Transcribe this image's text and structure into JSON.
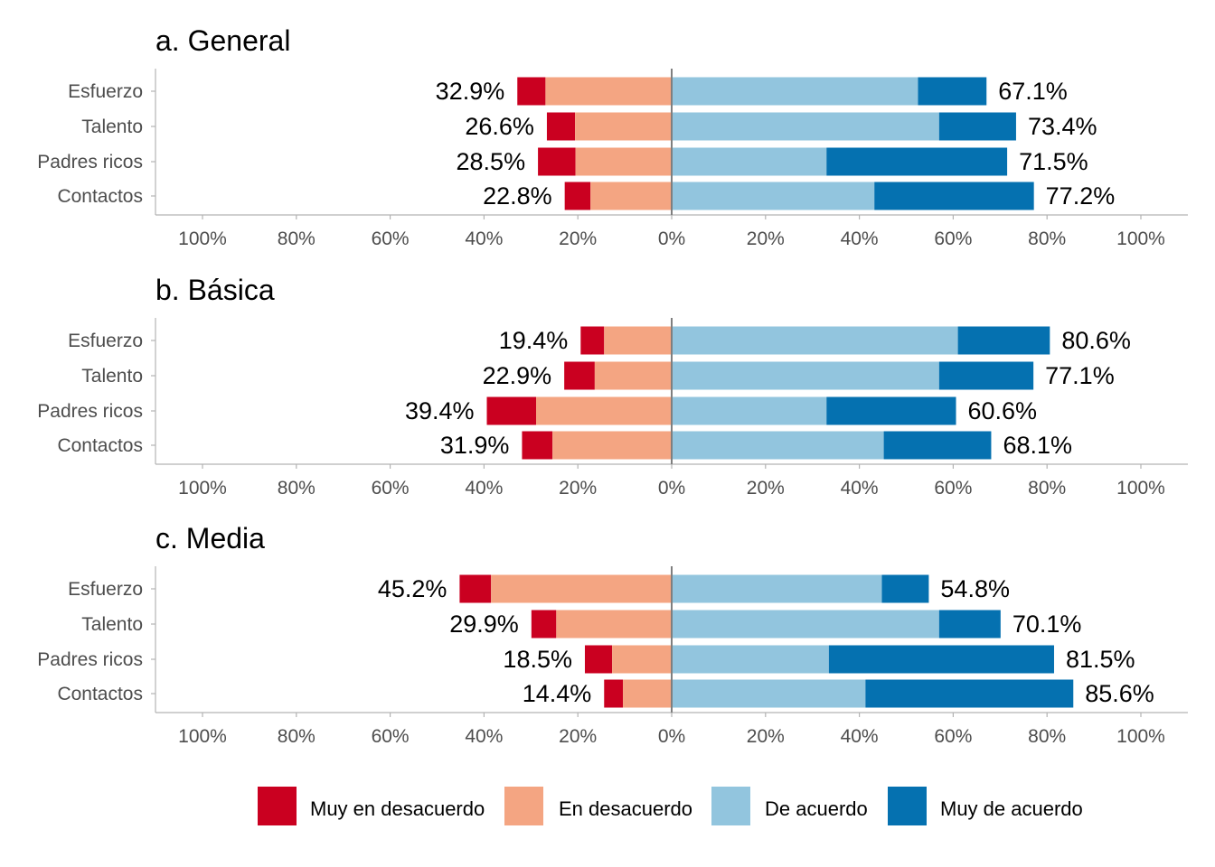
{
  "chart_data": [
    {
      "type": "bar",
      "orientation": "horizontal-diverging",
      "title": "a. General",
      "categories": [
        "Esfuerzo",
        "Talento",
        "Padres ricos",
        "Contactos"
      ],
      "series": [
        {
          "name": "Muy en desacuerdo",
          "values": [
            6.0,
            6.0,
            8.0,
            5.5
          ]
        },
        {
          "name": "En desacuerdo",
          "values": [
            26.9,
            20.6,
            20.5,
            17.3
          ]
        },
        {
          "name": "De acuerdo",
          "values": [
            52.5,
            57.0,
            33.0,
            43.2
          ]
        },
        {
          "name": "Muy de acuerdo",
          "values": [
            14.6,
            16.4,
            38.5,
            34.0
          ]
        }
      ],
      "negative_totals": [
        "32.9%",
        "26.6%",
        "28.5%",
        "22.8%"
      ],
      "positive_totals": [
        "67.1%",
        "73.4%",
        "71.5%",
        "77.2%"
      ],
      "xlim": [
        -110,
        110
      ],
      "x_ticks": [
        -100,
        -80,
        -60,
        -40,
        -20,
        0,
        20,
        40,
        60,
        80,
        100
      ],
      "x_tick_labels": [
        "100%",
        "80%",
        "60%",
        "40%",
        "20%",
        "0%",
        "20%",
        "40%",
        "60%",
        "80%",
        "100%"
      ]
    },
    {
      "type": "bar",
      "orientation": "horizontal-diverging",
      "title": "b. Básica",
      "categories": [
        "Esfuerzo",
        "Talento",
        "Padres ricos",
        "Contactos"
      ],
      "series": [
        {
          "name": "Muy en desacuerdo",
          "values": [
            5.0,
            6.5,
            10.5,
            6.5
          ]
        },
        {
          "name": "En desacuerdo",
          "values": [
            14.4,
            16.4,
            28.9,
            25.4
          ]
        },
        {
          "name": "De acuerdo",
          "values": [
            61.0,
            57.0,
            33.0,
            45.2
          ]
        },
        {
          "name": "Muy de acuerdo",
          "values": [
            19.6,
            20.1,
            27.6,
            22.9
          ]
        }
      ],
      "negative_totals": [
        "19.4%",
        "22.9%",
        "39.4%",
        "31.9%"
      ],
      "positive_totals": [
        "80.6%",
        "77.1%",
        "60.6%",
        "68.1%"
      ],
      "xlim": [
        -110,
        110
      ],
      "x_ticks": [
        -100,
        -80,
        -60,
        -40,
        -20,
        0,
        20,
        40,
        60,
        80,
        100
      ],
      "x_tick_labels": [
        "100%",
        "80%",
        "60%",
        "40%",
        "20%",
        "0%",
        "20%",
        "40%",
        "60%",
        "80%",
        "100%"
      ]
    },
    {
      "type": "bar",
      "orientation": "horizontal-diverging",
      "title": "c. Media",
      "categories": [
        "Esfuerzo",
        "Talento",
        "Padres ricos",
        "Contactos"
      ],
      "series": [
        {
          "name": "Muy en desacuerdo",
          "values": [
            6.7,
            5.3,
            5.8,
            4.0
          ]
        },
        {
          "name": "En desacuerdo",
          "values": [
            38.5,
            24.6,
            12.7,
            10.4
          ]
        },
        {
          "name": "De acuerdo",
          "values": [
            44.8,
            57.0,
            33.5,
            41.3
          ]
        },
        {
          "name": "Muy de acuerdo",
          "values": [
            10.0,
            13.1,
            48.0,
            44.3
          ]
        }
      ],
      "negative_totals": [
        "45.2%",
        "29.9%",
        "18.5%",
        "14.4%"
      ],
      "positive_totals": [
        "54.8%",
        "70.1%",
        "81.5%",
        "85.6%"
      ],
      "xlim": [
        -110,
        110
      ],
      "x_ticks": [
        -100,
        -80,
        -60,
        -40,
        -20,
        0,
        20,
        40,
        60,
        80,
        100
      ],
      "x_tick_labels": [
        "100%",
        "80%",
        "60%",
        "40%",
        "20%",
        "0%",
        "20%",
        "40%",
        "60%",
        "80%",
        "100%"
      ]
    }
  ],
  "legend": {
    "position": "bottom",
    "items": [
      {
        "name": "Muy en desacuerdo",
        "color": "#CA0020"
      },
      {
        "name": "En desacuerdo",
        "color": "#F4A582"
      },
      {
        "name": "De acuerdo",
        "color": "#92C5DE"
      },
      {
        "name": "Muy de acuerdo",
        "color": "#0571B0"
      }
    ]
  }
}
